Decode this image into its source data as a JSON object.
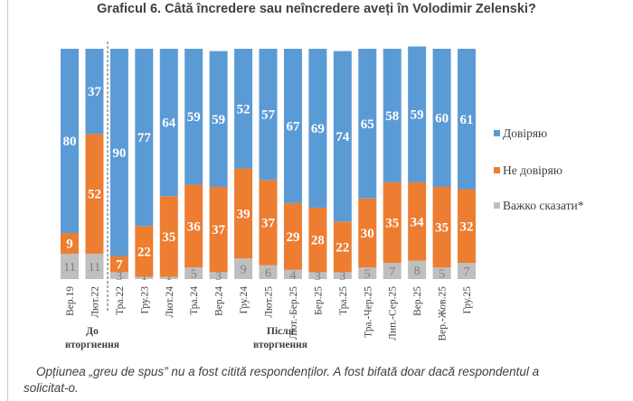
{
  "chart_data": {
    "type": "bar",
    "stacked": true,
    "title": "Graficul 6. Câtă încredere sau neîncredere aveți în Volodimir Zelenski?",
    "categories": [
      "Вер.19",
      "Лют.22",
      "Тра.22",
      "Гру.23",
      "Лют.24",
      "Тра.24",
      "Вер.24",
      "Гру.24",
      "Лют.25",
      "Лют.-Бер.25",
      "Бер.25",
      "Тра.25",
      "Тра.-Чер.25",
      "Лип.-Сер.25",
      "Вер.25",
      "Вер.-Жов.25",
      "Гру.25"
    ],
    "series": [
      {
        "name": "Важко сказати*",
        "color": "#bfbfbf",
        "values": [
          11,
          11,
          3,
          1,
          1,
          5,
          3,
          9,
          6,
          4,
          3,
          3,
          5,
          7,
          8,
          5,
          7
        ]
      },
      {
        "name": "Не довіряю",
        "color": "#ed7d31",
        "values": [
          9,
          52,
          7,
          22,
          35,
          36,
          37,
          39,
          37,
          29,
          28,
          22,
          30,
          35,
          34,
          35,
          32
        ]
      },
      {
        "name": "Довіряю",
        "color": "#5b9bd5",
        "values": [
          80,
          37,
          90,
          77,
          64,
          59,
          59,
          52,
          57,
          67,
          69,
          74,
          65,
          58,
          59,
          60,
          61
        ]
      }
    ],
    "ylim": [
      0,
      100
    ],
    "legend_position": "right",
    "groups": [
      {
        "label_line1": "До",
        "label_line2": "вторгнення"
      },
      {
        "label_line1": "Після",
        "label_line2": "вторгнення"
      }
    ],
    "xlabel": "",
    "ylabel": ""
  },
  "legend": [
    "Довіряю",
    "Не довіряю",
    "Важко сказати*"
  ],
  "footnote": {
    "line1": "Opțiunea „greu de spus” nu a fost citită respondenților. A fost bifată doar dacă respondentul a",
    "line2": "solicitat-o."
  }
}
